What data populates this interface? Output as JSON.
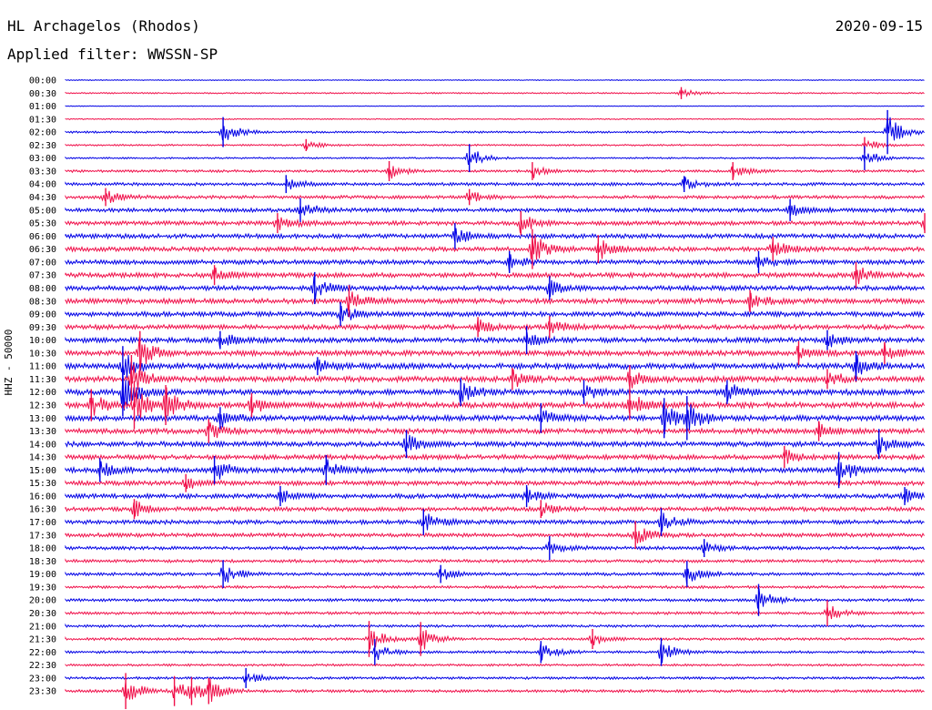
{
  "header": {
    "station": "HL Archagelos (Rhodos)",
    "date": "2020-09-15",
    "filter": "Applied filter: WWSSN-SP"
  },
  "chart_data": {
    "type": "line",
    "title": "HL Archagelos (Rhodos)",
    "date": "2020-09-15",
    "subtitle": "Applied filter: WWSSN-SP",
    "ylabel": "HHZ - 50000",
    "xlabel": "",
    "row_labels": [
      "00:00",
      "00:30",
      "01:00",
      "01:30",
      "02:00",
      "02:30",
      "03:00",
      "03:30",
      "04:00",
      "04:30",
      "05:00",
      "05:30",
      "06:00",
      "06:30",
      "07:00",
      "07:30",
      "08:00",
      "08:30",
      "09:00",
      "09:30",
      "10:00",
      "10:30",
      "11:00",
      "11:30",
      "12:00",
      "12:30",
      "13:00",
      "13:30",
      "14:00",
      "14:30",
      "15:00",
      "15:30",
      "16:00",
      "16:30",
      "17:00",
      "17:30",
      "18:00",
      "18:30",
      "19:00",
      "19:30",
      "20:00",
      "20:30",
      "21:00",
      "21:30",
      "22:00",
      "22:30",
      "23:00",
      "23:30"
    ],
    "row_minutes": 30,
    "colors": {
      "even_rows": "#0000e6",
      "odd_rows": "#f0104a"
    },
    "noise_level": [
      0.15,
      0.25,
      0.12,
      0.2,
      0.35,
      0.3,
      0.3,
      0.45,
      0.55,
      0.6,
      0.7,
      0.75,
      0.8,
      0.8,
      0.8,
      0.85,
      0.85,
      0.9,
      0.85,
      0.85,
      0.9,
      0.95,
      1.0,
      1.0,
      1.0,
      1.0,
      0.95,
      0.9,
      0.9,
      0.85,
      0.9,
      0.8,
      0.8,
      0.75,
      0.75,
      0.7,
      0.6,
      0.55,
      0.55,
      0.5,
      0.5,
      0.5,
      0.45,
      0.45,
      0.45,
      0.4,
      0.45,
      0.5
    ],
    "events": [
      {
        "row": 1,
        "minute": 21.5,
        "amplitude": 0.6
      },
      {
        "row": 4,
        "minute": 5.5,
        "amplitude": 1.5
      },
      {
        "row": 4,
        "minute": 28.7,
        "amplitude": 2.2
      },
      {
        "row": 5,
        "minute": 8.4,
        "amplitude": 0.6
      },
      {
        "row": 5,
        "minute": 27.9,
        "amplitude": 0.8
      },
      {
        "row": 6,
        "minute": 14.1,
        "amplitude": 1.4
      },
      {
        "row": 6,
        "minute": 27.9,
        "amplitude": 1.2
      },
      {
        "row": 7,
        "minute": 11.3,
        "amplitude": 1.0
      },
      {
        "row": 7,
        "minute": 16.3,
        "amplitude": 0.9
      },
      {
        "row": 7,
        "minute": 23.3,
        "amplitude": 0.9
      },
      {
        "row": 8,
        "minute": 7.7,
        "amplitude": 0.9
      },
      {
        "row": 8,
        "minute": 21.6,
        "amplitude": 0.8
      },
      {
        "row": 9,
        "minute": 1.4,
        "amplitude": 0.9
      },
      {
        "row": 9,
        "minute": 14.1,
        "amplitude": 0.8
      },
      {
        "row": 10,
        "minute": 8.2,
        "amplitude": 1.2
      },
      {
        "row": 10,
        "minute": 25.3,
        "amplitude": 1.1
      },
      {
        "row": 11,
        "minute": 7.4,
        "amplitude": 1.0
      },
      {
        "row": 11,
        "minute": 15.9,
        "amplitude": 1.2
      },
      {
        "row": 11,
        "minute": 30.0,
        "amplitude": 1.0
      },
      {
        "row": 12,
        "minute": 13.6,
        "amplitude": 1.3
      },
      {
        "row": 13,
        "minute": 16.3,
        "amplitude": 2.0
      },
      {
        "row": 13,
        "minute": 18.6,
        "amplitude": 1.4
      },
      {
        "row": 13,
        "minute": 24.7,
        "amplitude": 1.2
      },
      {
        "row": 14,
        "minute": 15.5,
        "amplitude": 1.1
      },
      {
        "row": 14,
        "minute": 24.2,
        "amplitude": 1.1
      },
      {
        "row": 15,
        "minute": 5.2,
        "amplitude": 1.0
      },
      {
        "row": 15,
        "minute": 27.6,
        "amplitude": 1.3
      },
      {
        "row": 16,
        "minute": 8.7,
        "amplitude": 1.6
      },
      {
        "row": 16,
        "minute": 16.9,
        "amplitude": 1.2
      },
      {
        "row": 17,
        "minute": 9.9,
        "amplitude": 1.6
      },
      {
        "row": 17,
        "minute": 23.9,
        "amplitude": 1.1
      },
      {
        "row": 18,
        "minute": 9.6,
        "amplitude": 1.2
      },
      {
        "row": 19,
        "minute": 14.4,
        "amplitude": 1.0
      },
      {
        "row": 19,
        "minute": 16.9,
        "amplitude": 1.1
      },
      {
        "row": 20,
        "minute": 5.4,
        "amplitude": 0.9
      },
      {
        "row": 20,
        "minute": 16.1,
        "amplitude": 1.4
      },
      {
        "row": 20,
        "minute": 26.6,
        "amplitude": 1.0
      },
      {
        "row": 21,
        "minute": 2.6,
        "amplitude": 2.2
      },
      {
        "row": 21,
        "minute": 25.6,
        "amplitude": 1.2
      },
      {
        "row": 21,
        "minute": 28.6,
        "amplitude": 1.1
      },
      {
        "row": 22,
        "minute": 2.0,
        "amplitude": 2.0
      },
      {
        "row": 22,
        "minute": 8.8,
        "amplitude": 0.9
      },
      {
        "row": 22,
        "minute": 27.6,
        "amplitude": 1.5
      },
      {
        "row": 23,
        "minute": 2.3,
        "amplitude": 2.4
      },
      {
        "row": 23,
        "minute": 15.6,
        "amplitude": 1.1
      },
      {
        "row": 23,
        "minute": 19.7,
        "amplitude": 1.4
      },
      {
        "row": 23,
        "minute": 26.6,
        "amplitude": 1.0
      },
      {
        "row": 24,
        "minute": 2.0,
        "amplitude": 2.4
      },
      {
        "row": 24,
        "minute": 13.8,
        "amplitude": 1.4
      },
      {
        "row": 24,
        "minute": 18.1,
        "amplitude": 1.2
      },
      {
        "row": 24,
        "minute": 23.1,
        "amplitude": 1.2
      },
      {
        "row": 25,
        "minute": 0.9,
        "amplitude": 1.6
      },
      {
        "row": 25,
        "minute": 2.4,
        "amplitude": 2.4
      },
      {
        "row": 25,
        "minute": 3.5,
        "amplitude": 2.0
      },
      {
        "row": 25,
        "minute": 6.5,
        "amplitude": 1.2
      },
      {
        "row": 25,
        "minute": 19.7,
        "amplitude": 1.5
      },
      {
        "row": 26,
        "minute": 5.4,
        "amplitude": 1.1
      },
      {
        "row": 26,
        "minute": 16.6,
        "amplitude": 1.5
      },
      {
        "row": 26,
        "minute": 20.9,
        "amplitude": 2.0
      },
      {
        "row": 26,
        "minute": 21.7,
        "amplitude": 2.2
      },
      {
        "row": 27,
        "minute": 5.0,
        "amplitude": 1.2
      },
      {
        "row": 27,
        "minute": 26.3,
        "amplitude": 1.0
      },
      {
        "row": 28,
        "minute": 11.9,
        "amplitude": 1.4
      },
      {
        "row": 28,
        "minute": 28.4,
        "amplitude": 1.5
      },
      {
        "row": 29,
        "minute": 25.1,
        "amplitude": 1.1
      },
      {
        "row": 30,
        "minute": 1.2,
        "amplitude": 1.2
      },
      {
        "row": 30,
        "minute": 5.2,
        "amplitude": 1.4
      },
      {
        "row": 30,
        "minute": 9.1,
        "amplitude": 1.5
      },
      {
        "row": 30,
        "minute": 27.0,
        "amplitude": 1.8
      },
      {
        "row": 31,
        "minute": 4.2,
        "amplitude": 0.9
      },
      {
        "row": 32,
        "minute": 7.5,
        "amplitude": 1.0
      },
      {
        "row": 32,
        "minute": 16.1,
        "amplitude": 1.1
      },
      {
        "row": 32,
        "minute": 29.3,
        "amplitude": 0.9
      },
      {
        "row": 33,
        "minute": 2.4,
        "amplitude": 1.0
      },
      {
        "row": 33,
        "minute": 16.6,
        "amplitude": 0.9
      },
      {
        "row": 34,
        "minute": 12.5,
        "amplitude": 1.3
      },
      {
        "row": 34,
        "minute": 20.8,
        "amplitude": 1.4
      },
      {
        "row": 35,
        "minute": 19.9,
        "amplitude": 1.4
      },
      {
        "row": 36,
        "minute": 16.9,
        "amplitude": 1.2
      },
      {
        "row": 36,
        "minute": 22.3,
        "amplitude": 0.9
      },
      {
        "row": 38,
        "minute": 5.5,
        "amplitude": 1.4
      },
      {
        "row": 38,
        "minute": 13.1,
        "amplitude": 0.9
      },
      {
        "row": 38,
        "minute": 21.7,
        "amplitude": 1.3
      },
      {
        "row": 40,
        "minute": 24.2,
        "amplitude": 1.6
      },
      {
        "row": 41,
        "minute": 26.6,
        "amplitude": 1.3
      },
      {
        "row": 43,
        "minute": 10.6,
        "amplitude": 1.8
      },
      {
        "row": 43,
        "minute": 12.4,
        "amplitude": 1.7
      },
      {
        "row": 43,
        "minute": 18.4,
        "amplitude": 1.0
      },
      {
        "row": 44,
        "minute": 10.8,
        "amplitude": 1.3
      },
      {
        "row": 44,
        "minute": 16.6,
        "amplitude": 1.1
      },
      {
        "row": 44,
        "minute": 20.8,
        "amplitude": 1.4
      },
      {
        "row": 46,
        "minute": 6.3,
        "amplitude": 1.0
      },
      {
        "row": 47,
        "minute": 2.1,
        "amplitude": 1.8
      },
      {
        "row": 47,
        "minute": 3.8,
        "amplitude": 1.5
      },
      {
        "row": 47,
        "minute": 4.4,
        "amplitude": 1.4
      },
      {
        "row": 47,
        "minute": 5.0,
        "amplitude": 1.3
      }
    ],
    "grid": false
  }
}
